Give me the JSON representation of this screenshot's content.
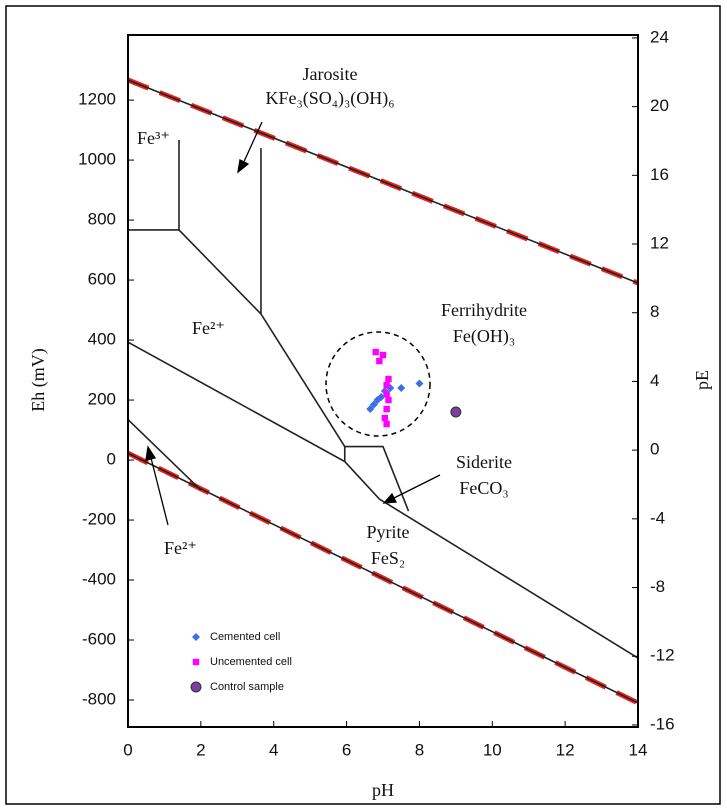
{
  "chart_data": {
    "type": "scatter",
    "xlabel": "pH",
    "ylabel": "Eh (mV)",
    "y2label": "pE",
    "xlim": [
      0,
      14
    ],
    "xticks": [
      0,
      2,
      4,
      6,
      8,
      10,
      12,
      14
    ],
    "ylim": [
      -890,
      1417
    ],
    "yticks": [
      1200,
      1000,
      800,
      600,
      400,
      200,
      0,
      -200,
      -400,
      -600,
      -800
    ],
    "y2lim": [
      -16.12,
      24.17
    ],
    "y2ticks": [
      24,
      20,
      16,
      12,
      8,
      4,
      0,
      -4,
      -8,
      -12,
      -16
    ],
    "series": [
      {
        "name": "Cemented cell",
        "color": "#3b6fe8",
        "marker": "diamond",
        "x": [
          6.65,
          6.75,
          6.85,
          6.95,
          7.05,
          7.2,
          7.5,
          8.0
        ],
        "values": [
          170,
          185,
          200,
          210,
          230,
          240,
          240,
          255
        ]
      },
      {
        "name": "Uncemented cell",
        "color": "#ff00ff",
        "marker": "square",
        "x": [
          6.8,
          6.9,
          7.0,
          7.15,
          7.1,
          7.1,
          7.15,
          7.1,
          7.05,
          7.1
        ],
        "values": [
          360,
          330,
          350,
          270,
          250,
          220,
          200,
          170,
          140,
          120
        ]
      },
      {
        "name": "Control sample",
        "color": "#7a3fa0",
        "marker": "circle",
        "x": [
          9.0
        ],
        "values": [
          160
        ]
      }
    ],
    "lines": [
      {
        "color": "#e8231f",
        "dash": true,
        "x": [
          0,
          14
        ],
        "values": [
          1267,
          590
        ]
      },
      {
        "color": "#e8231f",
        "dash": true,
        "x": [
          0,
          14
        ],
        "values": [
          23,
          -810
        ]
      },
      {
        "color": "#222222",
        "dash": false,
        "x": [
          0,
          14
        ],
        "values": [
          1267,
          590
        ]
      },
      {
        "color": "#222222",
        "dash": false,
        "x": [
          0,
          14
        ],
        "values": [
          23,
          -810
        ]
      },
      {
        "color": "#222222",
        "dash": false,
        "x": [
          0,
          1.4,
          1.4
        ],
        "values": [
          767,
          767,
          1067
        ]
      },
      {
        "color": "#222222",
        "dash": false,
        "x": [
          1.4,
          3.65,
          3.65
        ],
        "values": [
          767,
          487,
          1040
        ]
      },
      {
        "color": "#222222",
        "dash": false,
        "x": [
          3.65,
          5.95,
          7.0,
          7.7
        ],
        "values": [
          487,
          45,
          45,
          -170
        ]
      },
      {
        "color": "#222222",
        "dash": false,
        "x": [
          0,
          5.95,
          6.9,
          14
        ],
        "values": [
          393,
          -5,
          -130,
          -660
        ]
      },
      {
        "color": "#222222",
        "dash": false,
        "x": [
          5.95,
          5.95
        ],
        "values": [
          -5,
          45
        ]
      },
      {
        "color": "#222222",
        "dash": false,
        "x": [
          0,
          2.0
        ],
        "values": [
          135,
          -100
        ]
      }
    ],
    "annotations": [
      "Jarosite",
      "KFe₃(SO₄)₃(OH)₆",
      "Fe³⁺",
      "Fe²⁺",
      "Ferrihydrite",
      "Fe(OH)₃",
      "Siderite",
      "FeCO₃",
      "Pyrite",
      "FeS₂",
      "Fe²⁺"
    ]
  }
}
